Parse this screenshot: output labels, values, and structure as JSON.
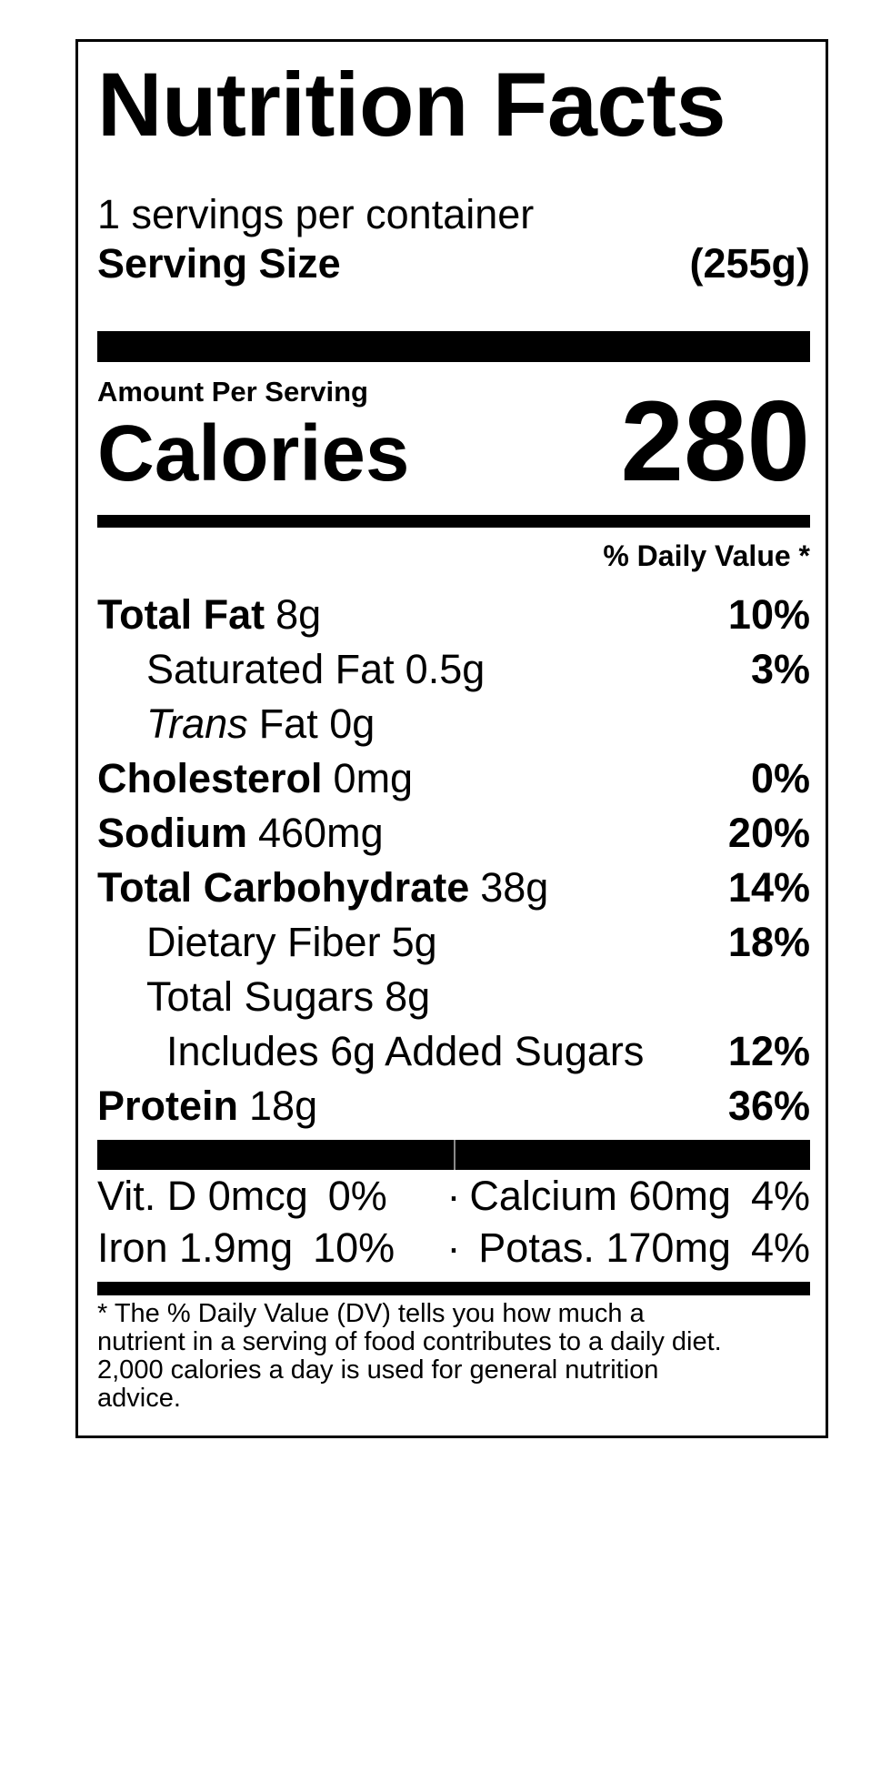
{
  "colors": {
    "ink": "#000000",
    "background": "#ffffff"
  },
  "label": {
    "title": "Nutrition Facts",
    "servings_per_container": "1 servings per container",
    "serving_size": {
      "label": "Serving Size",
      "value": "(255g)"
    },
    "amount_per_serving": "Amount Per Serving",
    "calories": {
      "label": "Calories",
      "value": "280"
    },
    "daily_value_header": "% Daily Value *",
    "nutrients": [
      {
        "name": "Total Fat",
        "amount": "8g",
        "dv": "10%"
      },
      {
        "name": "Saturated Fat",
        "amount": "0.5g",
        "dv": "3%"
      },
      {
        "name": "Trans",
        "amount": "Fat 0g",
        "dv": ""
      },
      {
        "name": "Cholesterol",
        "amount": "0mg",
        "dv": "0%"
      },
      {
        "name": "Sodium",
        "amount": "460mg",
        "dv": "20%"
      },
      {
        "name": "Total Carbohydrate",
        "amount": "38g",
        "dv": "14%"
      },
      {
        "name": "Dietary Fiber",
        "amount": "5g",
        "dv": "18%"
      },
      {
        "name": "Total Sugars",
        "amount": "8g",
        "dv": ""
      },
      {
        "name": "Includes 6g Added Sugars",
        "amount": "",
        "dv": "12%"
      },
      {
        "name": "Protein",
        "amount": "18g",
        "dv": "36%"
      }
    ],
    "micronutrients": {
      "separator": "·",
      "rows": [
        {
          "left_name": "Vit. D 0mcg",
          "left_dv": "0%",
          "right_name": "Calcium 60mg",
          "right_dv": "4%"
        },
        {
          "left_name": "Iron 1.9mg",
          "left_dv": "10%",
          "right_name": "Potas. 170mg",
          "right_dv": "4%"
        }
      ]
    },
    "footnote_lines": [
      "* The % Daily Value (DV) tells you how much a",
      "nutrient in a serving of food contributes to a daily diet.",
      "2,000 calories a day is used for general nutrition",
      "advice."
    ]
  }
}
